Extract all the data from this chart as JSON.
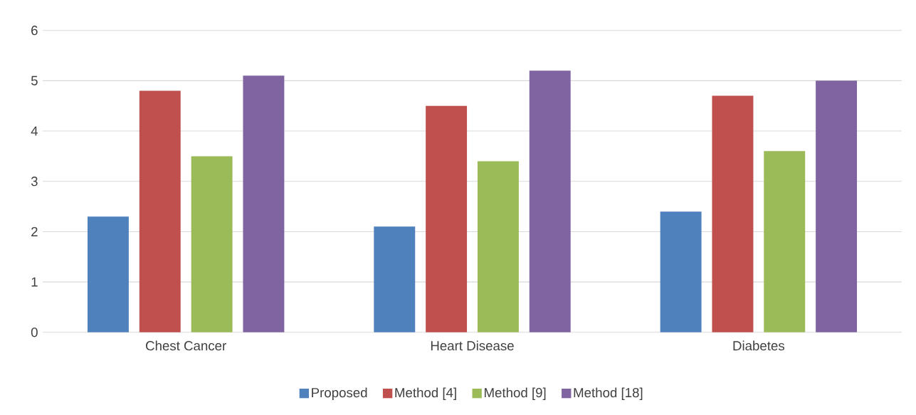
{
  "chart_data": {
    "type": "bar",
    "categories": [
      "Chest Cancer",
      "Heart Disease",
      "Diabetes"
    ],
    "series": [
      {
        "name": "Proposed",
        "color": "#4f81bd",
        "values": [
          2.3,
          2.1,
          2.4
        ]
      },
      {
        "name": "Method [4]",
        "color": "#c0504d",
        "values": [
          4.8,
          4.5,
          4.7
        ]
      },
      {
        "name": "Method [9]",
        "color": "#9bbb59",
        "values": [
          3.5,
          3.4,
          3.6
        ]
      },
      {
        "name": "Method [18]",
        "color": "#8064a2",
        "values": [
          5.1,
          5.2,
          5.0
        ]
      }
    ],
    "ylim": [
      0,
      6
    ],
    "yticks": [
      0,
      1,
      2,
      3,
      4,
      5,
      6
    ],
    "grid": "y",
    "legend": "bottom"
  }
}
